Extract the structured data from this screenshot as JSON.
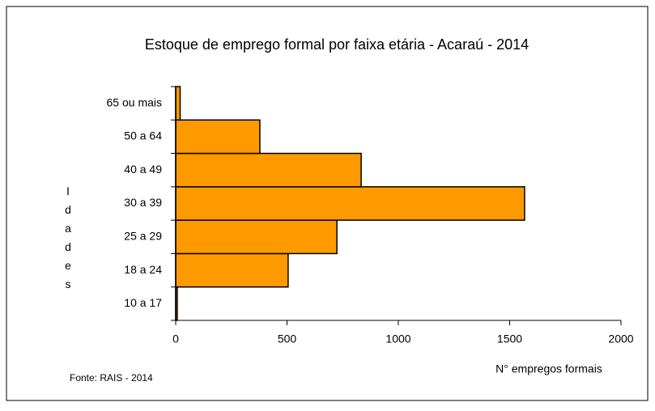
{
  "chart_data": {
    "type": "barh",
    "title": "Estoque de emprego formal por faixa etária - Acaraú - 2014",
    "categories": [
      "10 a 17",
      "18 a 24",
      "25 a 29",
      "30 a 39",
      "40 a 49",
      "50 a 64",
      "65 ou mais"
    ],
    "values": [
      7,
      505,
      724,
      1567,
      833,
      378,
      20
    ],
    "color": "#ff9900",
    "xlim": [
      0,
      2000
    ],
    "xticks": [
      0,
      500,
      1000,
      1500,
      2000
    ],
    "grid": false,
    "x_label": "N° empregos formais",
    "y_label": "Idades",
    "source": "Fonte: RAIS - 2014"
  }
}
